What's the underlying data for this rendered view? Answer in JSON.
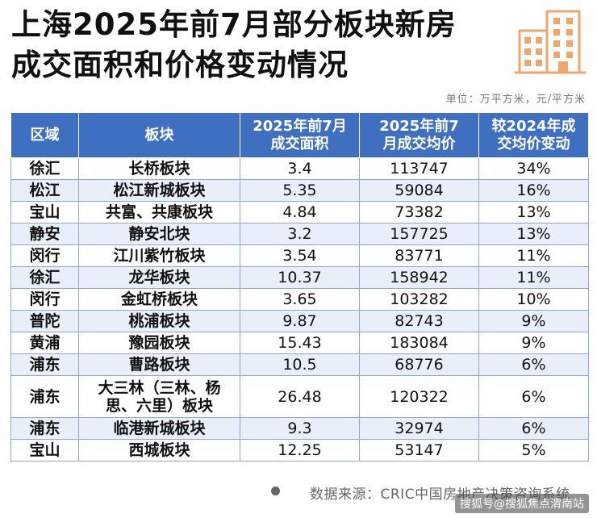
{
  "title": {
    "line1": "上海2025年前7月部分板块新房",
    "line2": "成交面积和价格变动情况"
  },
  "unit_note": "单位：万平方米，元/平方米",
  "table": {
    "headers": [
      "区域",
      "板块",
      "2025年前7月成交面积",
      "2025年前7月成交均价",
      "较2024年成交均价变动"
    ],
    "header_lines": [
      [
        "区域"
      ],
      [
        "板块"
      ],
      [
        "2025年前7月",
        "成交面积"
      ],
      [
        "2025年前7",
        "月成交均价"
      ],
      [
        "较2024年成",
        "交均价变动"
      ]
    ],
    "rows": [
      {
        "region": "徐汇",
        "block": "长桥板块",
        "area": "3.4",
        "price": "113747",
        "change": "34%"
      },
      {
        "region": "松江",
        "block": "松江新城板块",
        "area": "5.35",
        "price": "59084",
        "change": "16%"
      },
      {
        "region": "宝山",
        "block": "共富、共康板块",
        "area": "4.84",
        "price": "73382",
        "change": "13%"
      },
      {
        "region": "静安",
        "block": "静安北块",
        "area": "3.2",
        "price": "157725",
        "change": "13%"
      },
      {
        "region": "闵行",
        "block": "江川紫竹板块",
        "area": "3.54",
        "price": "83771",
        "change": "11%"
      },
      {
        "region": "徐汇",
        "block": "龙华板块",
        "area": "10.37",
        "price": "158942",
        "change": "11%"
      },
      {
        "region": "闵行",
        "block": "金虹桥板块",
        "area": "3.65",
        "price": "103282",
        "change": "10%"
      },
      {
        "region": "普陀",
        "block": "桃浦板块",
        "area": "9.87",
        "price": "82743",
        "change": "9%"
      },
      {
        "region": "黄浦",
        "block": "豫园板块",
        "area": "15.43",
        "price": "183084",
        "change": "9%"
      },
      {
        "region": "浦东",
        "block": "曹路板块",
        "area": "10.5",
        "price": "68776",
        "change": "6%"
      },
      {
        "region": "浦东",
        "block": "大三林（三林、杨思、六里）板块",
        "area": "26.48",
        "price": "120322",
        "change": "6%"
      },
      {
        "region": "浦东",
        "block": "临港新城板块",
        "area": "9.3",
        "price": "32974",
        "change": "6%"
      },
      {
        "region": "宝山",
        "block": "西城板块",
        "area": "12.25",
        "price": "53147",
        "change": "5%"
      }
    ]
  },
  "source": "数据来源：CRIC中国房地产决策咨询系统",
  "watermark": "搜狐号@搜狐焦点渭南站",
  "colors": {
    "header_bg": "#3f6fc0",
    "row_alt_bg": "#e9eff9",
    "logo_accent": "#f0a56a"
  },
  "icons": {
    "logo": "building-icon"
  }
}
